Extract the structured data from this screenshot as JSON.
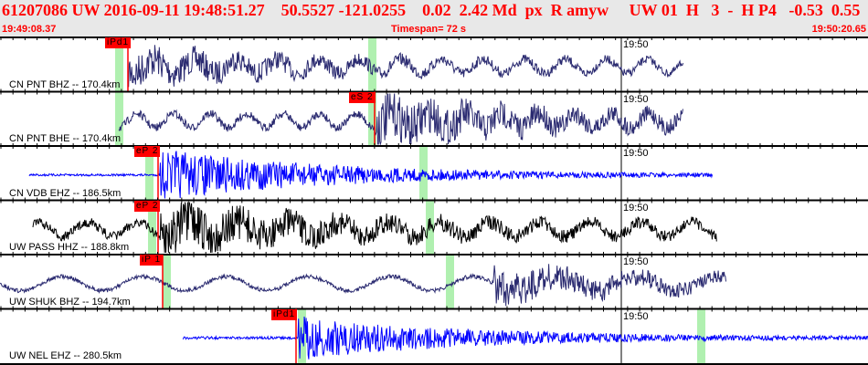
{
  "header": {
    "title": "61207086 UW 2016-09-11 19:48:51.27    50.5527 -121.0255    0.02  2.42 Md  px  R amyw     UW 01  H   3  -  H P4   -0.53  0.55",
    "start_time": "19:49:08.37",
    "timespan": "Timespan=  72 s",
    "end_time": "19:50:20.65"
  },
  "time_marker": "19:50",
  "colors": {
    "pick": "#ff0000",
    "window": "#b0f0b0",
    "navy": "#2a2a70",
    "blue": "#0000ff",
    "black": "#000000"
  },
  "channels": [
    {
      "label": "CN PNT BHZ -- 170.4km",
      "pick": "iPd1",
      "color": "navy"
    },
    {
      "label": "CN PNT BHE -- 170.4km",
      "pick": "eS 2",
      "color": "navy"
    },
    {
      "label": "CN VDB EHZ -- 186.5km",
      "pick": "eP 2",
      "color": "blue"
    },
    {
      "label": "UW PASS HHZ -- 188.8km",
      "pick": "eP 2",
      "color": "black"
    },
    {
      "label": "UW SHUK BHZ -- 194.7km",
      "pick": "iP 1",
      "color": "navy"
    },
    {
      "label": "UW NEL EHZ -- 280.5km",
      "pick": "iPd1",
      "color": "blue"
    }
  ]
}
